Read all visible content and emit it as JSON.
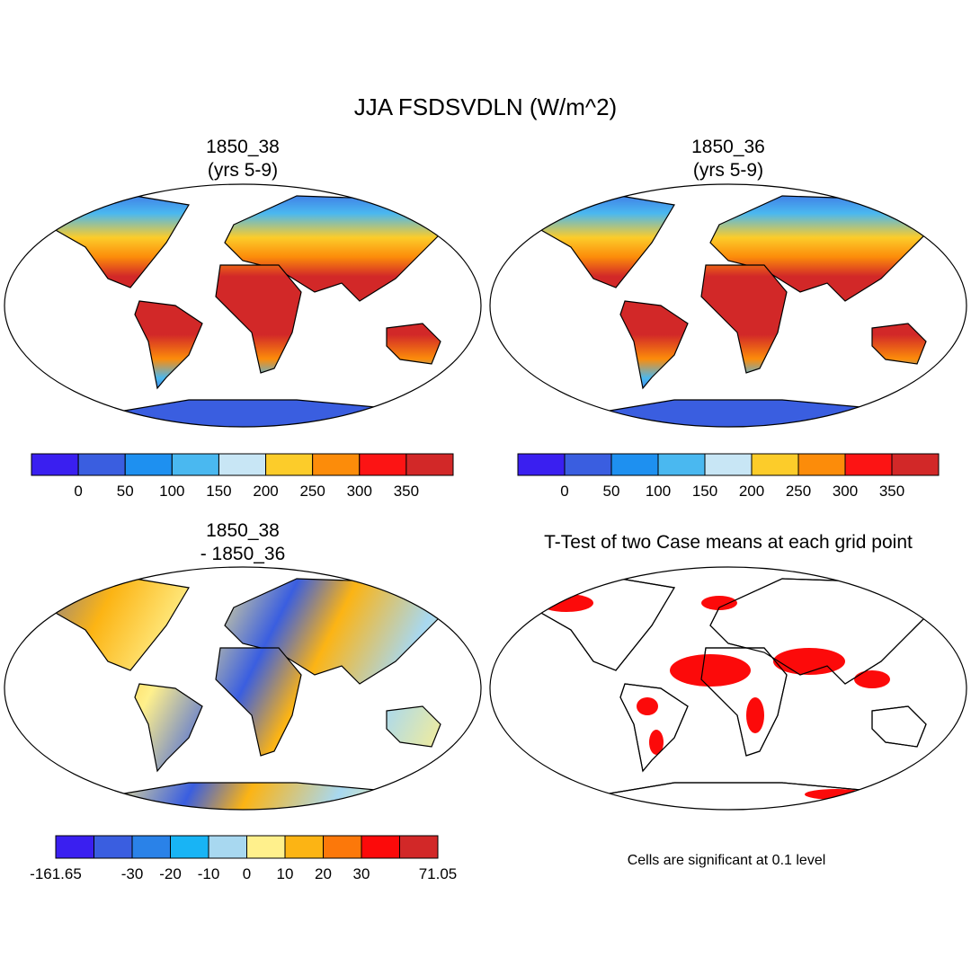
{
  "title": "JJA FSDSVDLN (W/m^2)",
  "panels": [
    {
      "title": [
        "1850_38",
        "(yrs 5-9)"
      ]
    },
    {
      "title": [
        "1850_36",
        "(yrs 5-9)"
      ]
    },
    {
      "title": [
        "1850_38",
        "- 1850_36"
      ]
    },
    {
      "title": [
        "T-Test of two Case means at each grid point"
      ]
    }
  ],
  "colorbars": [
    {
      "colors": [
        "#3a1ff0",
        "#3a5ee0",
        "#1e90f0",
        "#4ab8f0",
        "#c8e6f5",
        "#fccc2a",
        "#fc8c0a",
        "#fc1414",
        "#d22828"
      ],
      "labels": [
        null,
        "0",
        "50",
        "100",
        "150",
        "200",
        "250",
        "300",
        "350",
        null
      ]
    },
    {
      "colors": [
        "#3a1ff0",
        "#3a5ee0",
        "#1e90f0",
        "#4ab8f0",
        "#c8e6f5",
        "#fccc2a",
        "#fc8c0a",
        "#fc1414",
        "#d22828"
      ],
      "labels": [
        null,
        "0",
        "50",
        "100",
        "150",
        "200",
        "250",
        "300",
        "350",
        null
      ]
    },
    {
      "colors": [
        "#3a1ff0",
        "#3a5ee0",
        "#2a82e8",
        "#18b4f5",
        "#a8d8f0",
        "#fff08c",
        "#fcb414",
        "#fc780a",
        "#fc0a0a",
        "#d22828"
      ],
      "labels": [
        "-161.65",
        null,
        "-30",
        "-20",
        "-10",
        "0",
        "10",
        "20",
        "30",
        null,
        "71.05"
      ]
    }
  ],
  "footnote": "Cells are significant at 0.1 level"
}
